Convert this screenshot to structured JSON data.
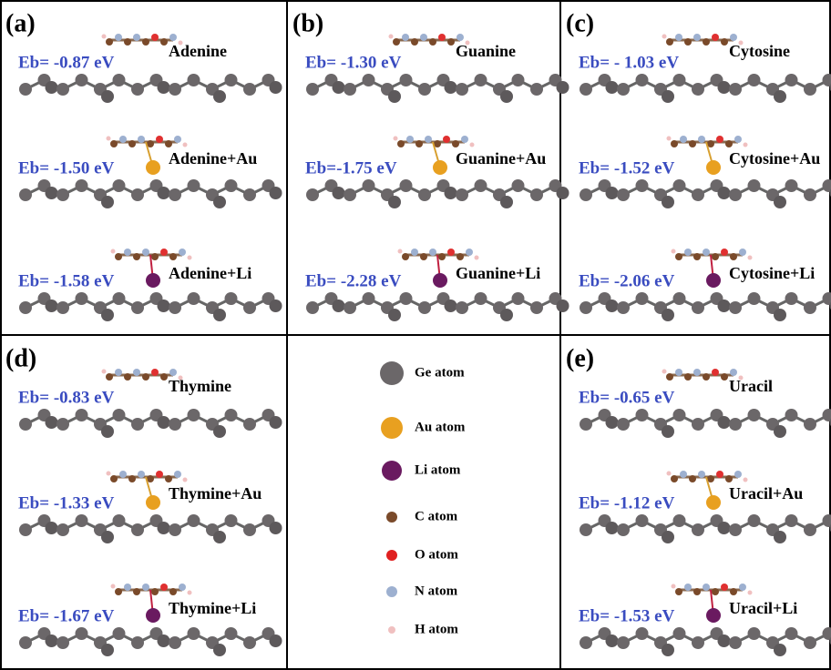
{
  "panels": [
    {
      "label": "(a)",
      "rows": [
        {
          "eb": "Eb= -0.87 eV",
          "name": "Adenine"
        },
        {
          "eb": "Eb= -1.50 eV",
          "name": "Adenine+Au"
        },
        {
          "eb": "Eb= -1.58 eV",
          "name": "Adenine+Li"
        }
      ]
    },
    {
      "label": "(b)",
      "rows": [
        {
          "eb": "Eb= -1.30 eV",
          "name": "Guanine"
        },
        {
          "eb": "Eb=-1.75 eV",
          "name": "Guanine+Au"
        },
        {
          "eb": "Eb= -2.28 eV",
          "name": "Guanine+Li"
        }
      ]
    },
    {
      "label": "(c)",
      "rows": [
        {
          "eb": "Eb= - 1.03 eV",
          "name": "Cytosine"
        },
        {
          "eb": "Eb= -1.52 eV",
          "name": "Cytosine+Au"
        },
        {
          "eb": "Eb= -2.06 eV",
          "name": "Cytosine+Li"
        }
      ]
    },
    {
      "label": "(d)",
      "rows": [
        {
          "eb": "Eb= -0.83 eV",
          "name": "Thymine"
        },
        {
          "eb": "Eb= -1.33 eV",
          "name": "Thymine+Au"
        },
        {
          "eb": "Eb= -1.67 eV",
          "name": "Thymine+Li"
        }
      ]
    },
    {
      "label": "(e)",
      "rows": [
        {
          "eb": "Eb= -0.65 eV",
          "name": "Uracil"
        },
        {
          "eb": "Eb= -1.12 eV",
          "name": "Uracil+Au"
        },
        {
          "eb": "Eb= -1.53 eV",
          "name": "Uracil+Li"
        }
      ]
    }
  ],
  "legend": [
    "Ge atom",
    "Au atom",
    "Li atom",
    "C atom",
    "O atom",
    "N atom",
    "H atom"
  ]
}
